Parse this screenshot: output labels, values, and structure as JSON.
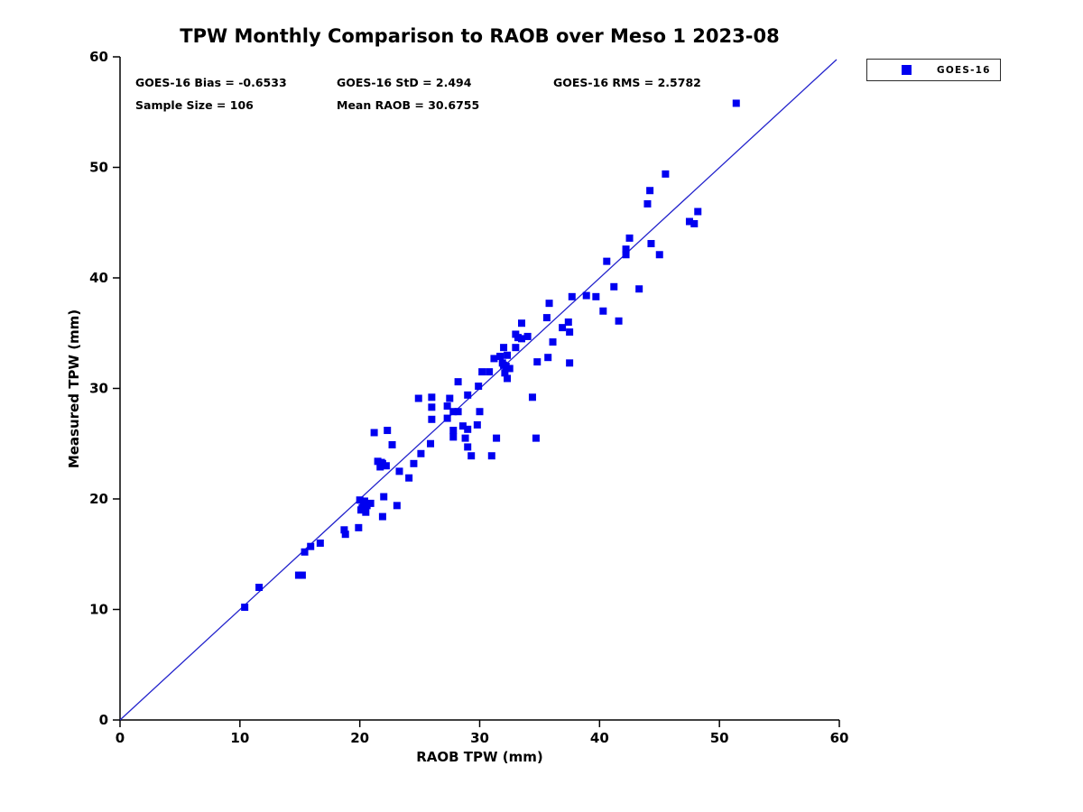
{
  "title": "TPW Monthly Comparison to RAOB over Meso 1 2023-08",
  "annotations": {
    "bias": "GOES-16 Bias = -0.6533",
    "std": "GOES-16 StD = 2.494",
    "rms": "GOES-16 RMS = 2.5782",
    "sample_size": "Sample Size = 106",
    "mean_raob": "Mean RAOB = 30.6755"
  },
  "legend": {
    "label": "GOES-16"
  },
  "colors": {
    "marker": "#0000f0",
    "line": "#2323cc",
    "axis": "#000000",
    "background": "#ffffff"
  },
  "chart_data": {
    "type": "scatter",
    "title": "TPW Monthly Comparison to RAOB over Meso 1 2023-08",
    "xlabel": "RAOB TPW (mm)",
    "ylabel": "Measured TPW (mm)",
    "xlim": [
      0,
      60
    ],
    "ylim": [
      0,
      60
    ],
    "xticks": [
      0,
      10,
      20,
      30,
      40,
      50,
      60
    ],
    "yticks": [
      0,
      10,
      20,
      30,
      40,
      50,
      60
    ],
    "grid": false,
    "legend_position": "outside-top-right",
    "reference_line": {
      "type": "identity",
      "from": [
        0,
        0
      ],
      "to": [
        60,
        60
      ]
    },
    "series": [
      {
        "name": "GOES-16",
        "marker": "square",
        "points": [
          [
            10.4,
            10.2
          ],
          [
            11.6,
            12.0
          ],
          [
            14.9,
            13.1
          ],
          [
            15.2,
            13.1
          ],
          [
            15.4,
            15.2
          ],
          [
            15.9,
            15.7
          ],
          [
            16.7,
            16.0
          ],
          [
            18.7,
            17.2
          ],
          [
            18.8,
            16.8
          ],
          [
            19.9,
            17.4
          ],
          [
            20.0,
            19.9
          ],
          [
            20.3,
            19.6
          ],
          [
            20.6,
            19.4
          ],
          [
            20.9,
            19.6
          ],
          [
            20.2,
            19.2
          ],
          [
            20.5,
            18.8
          ],
          [
            20.1,
            19.0
          ],
          [
            20.4,
            19.8
          ],
          [
            22.0,
            20.2
          ],
          [
            23.1,
            19.4
          ],
          [
            21.9,
            18.4
          ],
          [
            21.5,
            23.4
          ],
          [
            21.9,
            23.2
          ],
          [
            22.2,
            23.0
          ],
          [
            21.7,
            22.9
          ],
          [
            21.8,
            23.3
          ],
          [
            23.3,
            22.5
          ],
          [
            24.1,
            21.9
          ],
          [
            24.5,
            23.2
          ],
          [
            25.1,
            24.1
          ],
          [
            25.9,
            25.0
          ],
          [
            21.2,
            26.0
          ],
          [
            22.3,
            26.2
          ],
          [
            22.7,
            24.9
          ],
          [
            24.9,
            29.1
          ],
          [
            26.0,
            29.2
          ],
          [
            26.0,
            28.3
          ],
          [
            26.0,
            27.2
          ],
          [
            27.3,
            27.3
          ],
          [
            27.5,
            29.1
          ],
          [
            27.3,
            28.4
          ],
          [
            27.8,
            27.9
          ],
          [
            28.2,
            27.9
          ],
          [
            28.2,
            30.6
          ],
          [
            30.2,
            31.5
          ],
          [
            30.0,
            27.9
          ],
          [
            27.8,
            26.2
          ],
          [
            27.8,
            25.6
          ],
          [
            28.8,
            25.5
          ],
          [
            28.6,
            26.6
          ],
          [
            29.0,
            26.3
          ],
          [
            29.8,
            26.7
          ],
          [
            31.4,
            25.5
          ],
          [
            29.0,
            24.7
          ],
          [
            29.3,
            23.9
          ],
          [
            31.0,
            23.9
          ],
          [
            29.0,
            29.4
          ],
          [
            29.9,
            30.2
          ],
          [
            30.8,
            31.5
          ],
          [
            31.2,
            32.7
          ],
          [
            31.7,
            32.9
          ],
          [
            32.3,
            33.0
          ],
          [
            32.0,
            33.7
          ],
          [
            33.0,
            33.7
          ],
          [
            31.9,
            32.3
          ],
          [
            32.2,
            32.0
          ],
          [
            32.5,
            31.8
          ],
          [
            32.1,
            31.4
          ],
          [
            32.0,
            32.1
          ],
          [
            32.3,
            30.9
          ],
          [
            34.4,
            29.2
          ],
          [
            34.8,
            32.4
          ],
          [
            35.7,
            32.8
          ],
          [
            37.5,
            32.3
          ],
          [
            33.0,
            34.9
          ],
          [
            33.5,
            34.5
          ],
          [
            34.0,
            34.7
          ],
          [
            33.2,
            34.6
          ],
          [
            33.5,
            35.9
          ],
          [
            36.9,
            35.5
          ],
          [
            37.4,
            36.0
          ],
          [
            37.5,
            35.1
          ],
          [
            36.1,
            34.2
          ],
          [
            34.7,
            25.5
          ],
          [
            35.6,
            36.4
          ],
          [
            35.8,
            37.7
          ],
          [
            37.7,
            38.3
          ],
          [
            38.9,
            38.4
          ],
          [
            39.7,
            38.3
          ],
          [
            41.2,
            39.2
          ],
          [
            43.3,
            39.0
          ],
          [
            40.3,
            37.0
          ],
          [
            41.6,
            36.1
          ],
          [
            40.6,
            41.5
          ],
          [
            42.2,
            42.6
          ],
          [
            42.2,
            42.1
          ],
          [
            42.5,
            43.6
          ],
          [
            44.3,
            43.1
          ],
          [
            45.0,
            42.1
          ],
          [
            47.5,
            45.1
          ],
          [
            47.9,
            44.9
          ],
          [
            45.5,
            49.4
          ],
          [
            44.2,
            47.9
          ],
          [
            44.0,
            46.7
          ],
          [
            48.2,
            46.0
          ],
          [
            51.4,
            55.8
          ]
        ]
      }
    ]
  }
}
